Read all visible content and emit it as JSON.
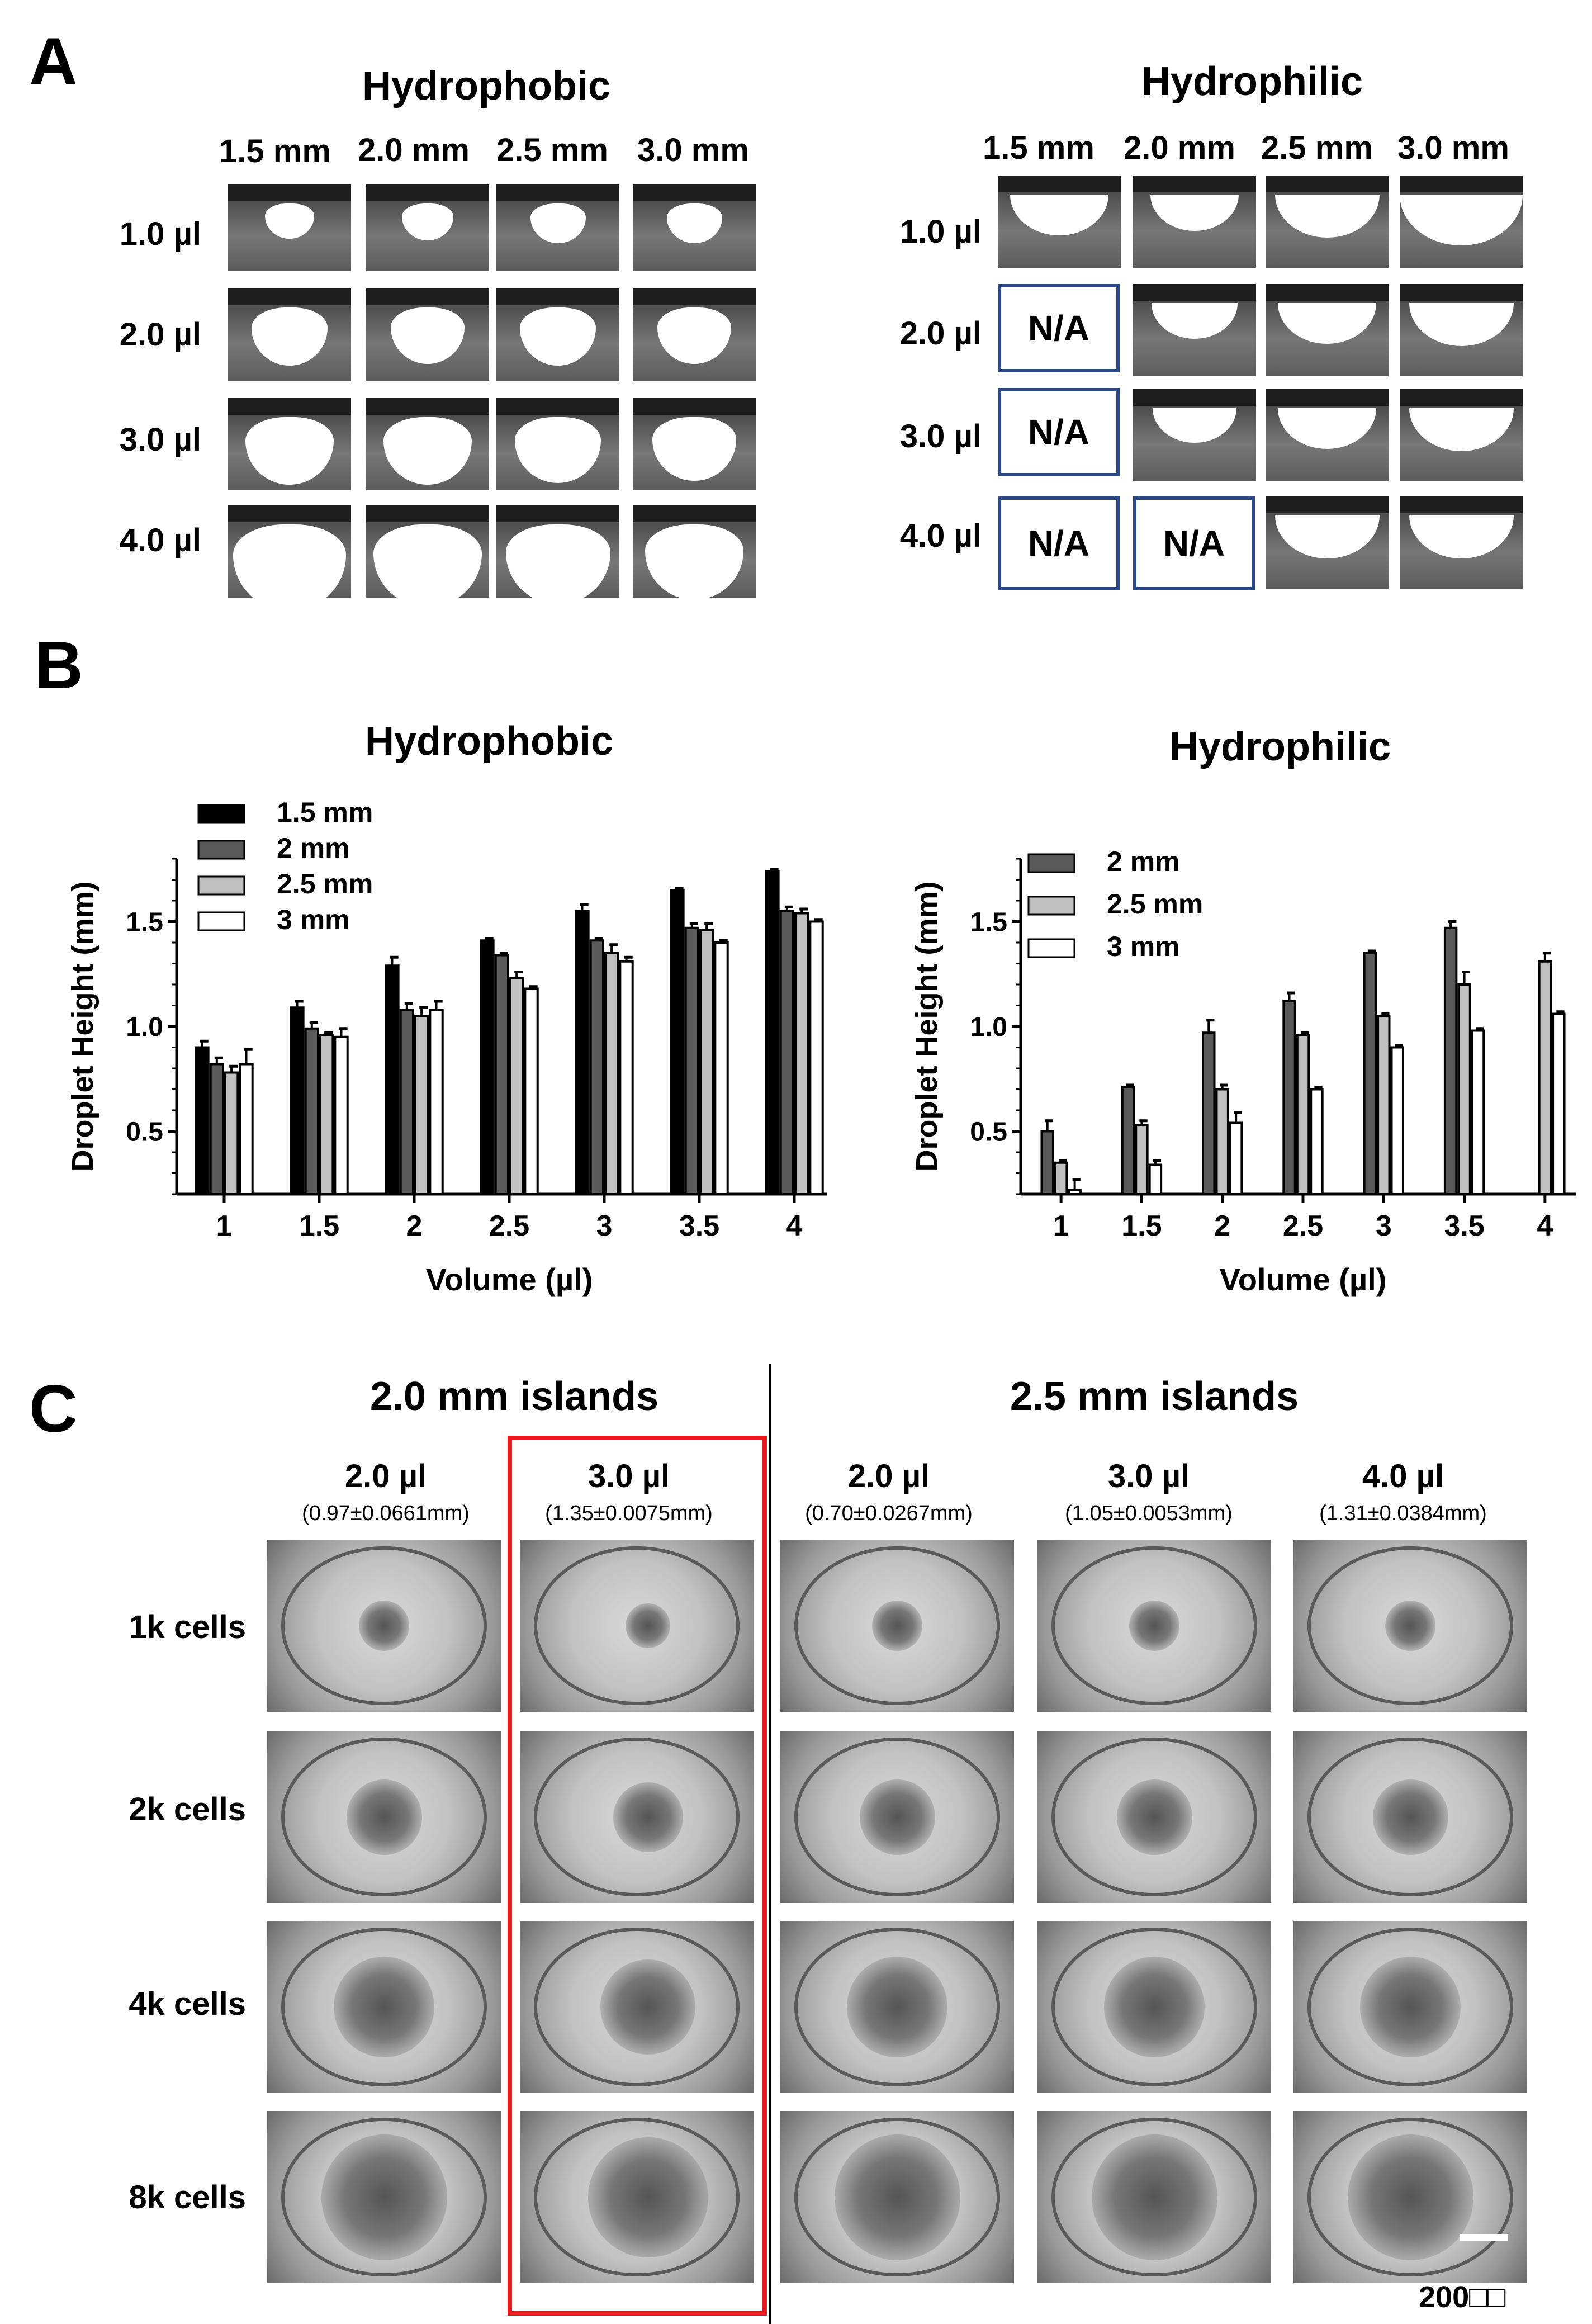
{
  "panelA": {
    "letter": "A",
    "hydrophobic": {
      "title": "Hydrophobic",
      "columns": [
        "1.5 mm",
        "2.0 mm",
        "2.5 mm",
        "3.0 mm"
      ],
      "rows": [
        "1.0 µl",
        "2.0 µl",
        "3.0 µl",
        "4.0 µl"
      ]
    },
    "hydrophilic": {
      "title": "Hydrophilic",
      "columns": [
        "1.5 mm",
        "2.0 mm",
        "2.5 mm",
        "3.0 mm"
      ],
      "rows": [
        "1.0 µl",
        "2.0 µl",
        "3.0 µl",
        "4.0 µl"
      ],
      "na_label": "N/A"
    }
  },
  "panelB": {
    "letter": "B"
  },
  "chart_data": [
    {
      "type": "bar",
      "title": "Hydrophobic",
      "xlabel": "Volume (µl)",
      "ylabel": "Droplet Height (mm)",
      "categories": [
        "1",
        "1.5",
        "2",
        "2.5",
        "3",
        "3.5",
        "4"
      ],
      "ylim": [
        0.2,
        1.8
      ],
      "yticks": [
        "0.5",
        "1.0",
        "1.5"
      ],
      "legend_position": "top-left",
      "series": [
        {
          "name": "1.5 mm",
          "color": "#000000",
          "values": [
            0.9,
            1.09,
            1.29,
            1.41,
            1.55,
            1.65,
            1.74
          ],
          "errors": [
            0.03,
            0.03,
            0.04,
            0.01,
            0.03,
            0.01,
            0.01
          ]
        },
        {
          "name": "2 mm",
          "color": "#595959",
          "values": [
            0.82,
            0.99,
            1.08,
            1.34,
            1.41,
            1.47,
            1.55
          ],
          "errors": [
            0.03,
            0.03,
            0.03,
            0.01,
            0.01,
            0.02,
            0.02
          ]
        },
        {
          "name": "2.5 mm",
          "color": "#c0c0c0",
          "values": [
            0.78,
            0.96,
            1.05,
            1.23,
            1.35,
            1.46,
            1.54
          ],
          "errors": [
            0.03,
            0.01,
            0.04,
            0.03,
            0.04,
            0.03,
            0.02
          ]
        },
        {
          "name": "3 mm",
          "color": "#ffffff",
          "values": [
            0.82,
            0.95,
            1.08,
            1.18,
            1.31,
            1.4,
            1.5
          ],
          "errors": [
            0.07,
            0.04,
            0.04,
            0.01,
            0.02,
            0.01,
            0.01
          ]
        }
      ]
    },
    {
      "type": "bar",
      "title": "Hydrophilic",
      "xlabel": "Volume (µl)",
      "ylabel": "Droplet Height (mm)",
      "categories": [
        "1",
        "1.5",
        "2",
        "2.5",
        "3",
        "3.5",
        "4"
      ],
      "ylim": [
        0.2,
        1.8
      ],
      "yticks": [
        "0.5",
        "1.0",
        "1.5"
      ],
      "legend_position": "top-left",
      "series": [
        {
          "name": "2 mm",
          "color": "#595959",
          "values": [
            0.5,
            0.71,
            0.97,
            1.12,
            1.35,
            1.47,
            null
          ],
          "errors": [
            0.05,
            0.01,
            0.06,
            0.04,
            0.01,
            0.03,
            null
          ]
        },
        {
          "name": "2.5 mm",
          "color": "#c0c0c0",
          "values": [
            0.35,
            0.53,
            0.7,
            0.96,
            1.05,
            1.2,
            1.31
          ],
          "errors": [
            0.01,
            0.02,
            0.02,
            0.01,
            0.01,
            0.06,
            0.04
          ]
        },
        {
          "name": "3 mm",
          "color": "#ffffff",
          "values": [
            0.22,
            0.34,
            0.54,
            0.7,
            0.9,
            0.98,
            1.06
          ],
          "errors": [
            0.05,
            0.02,
            0.05,
            0.01,
            0.01,
            0.01,
            0.01
          ]
        }
      ]
    }
  ],
  "panelC": {
    "letter": "C",
    "group_left": "2.0 mm islands",
    "group_right": "2.5 mm islands",
    "columns": [
      {
        "volume": "2.0 µl",
        "height": "(0.97±0.0661mm)"
      },
      {
        "volume": "3.0 µl",
        "height": "(1.35±0.0075mm)"
      },
      {
        "volume": "2.0 µl",
        "height": "(0.70±0.0267mm)"
      },
      {
        "volume": "3.0 µl",
        "height": "(1.05±0.0053mm)"
      },
      {
        "volume": "4.0 µl",
        "height": "(1.31±0.0384mm)"
      }
    ],
    "rows": [
      "1k cells",
      "2k cells",
      "4k cells",
      "8k cells"
    ],
    "scale_bar": "200□□",
    "highlight_color": "#e8191a"
  }
}
